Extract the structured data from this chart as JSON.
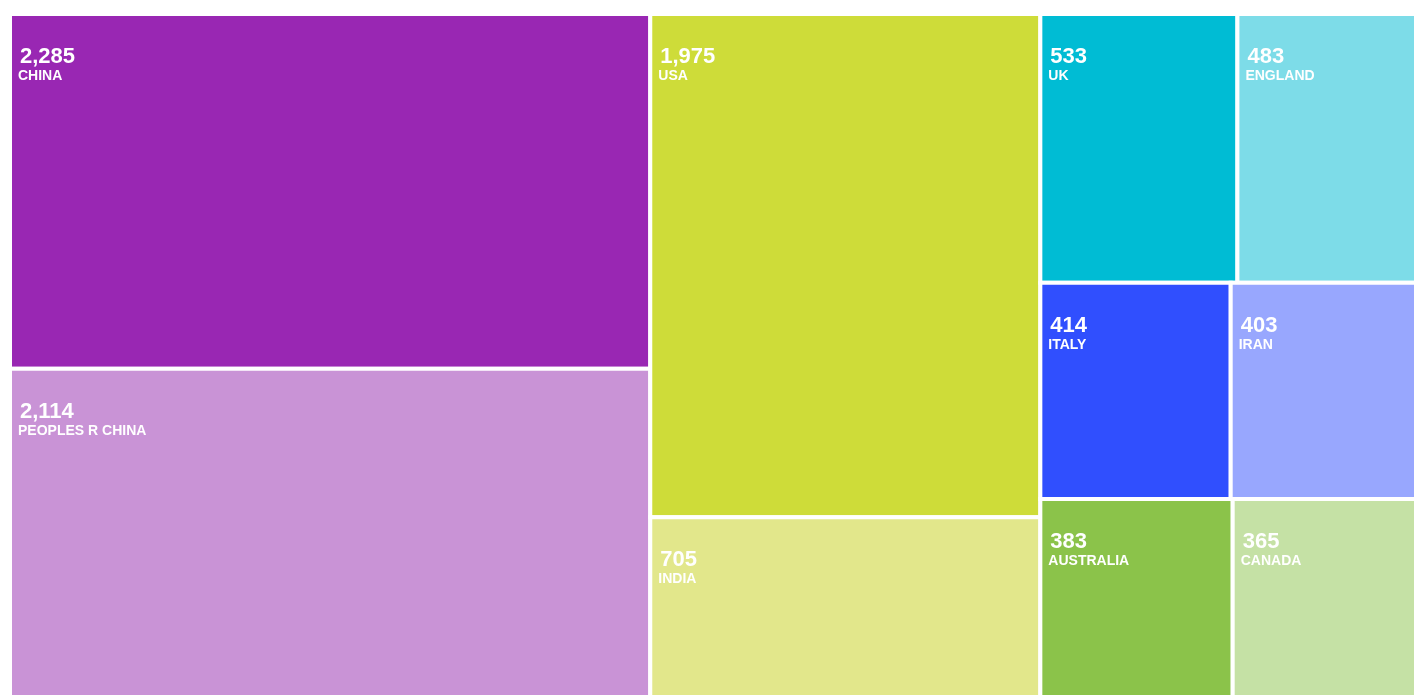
{
  "chart_data": {
    "type": "other",
    "categories": [
      "CHINA",
      "PEOPLES R CHINA",
      "USA",
      "INDIA",
      "UK",
      "ENGLAND",
      "ITALY",
      "IRAN",
      "AUSTRALIA",
      "CANADA"
    ],
    "values": [
      2285,
      2114,
      1975,
      705,
      533,
      483,
      414,
      403,
      383,
      365
    ],
    "value_labels": [
      "2,285",
      "2,114",
      "1,975",
      "705",
      "533",
      "483",
      "414",
      "403",
      "383",
      "365"
    ],
    "colors": [
      "#9927b3",
      "#c993d6",
      "#cedc39",
      "#e2e78b",
      "#00bcd4",
      "#7ddce8",
      "#304ffe",
      "#98a7fe",
      "#8bc34a",
      "#c5e1a5"
    ]
  }
}
